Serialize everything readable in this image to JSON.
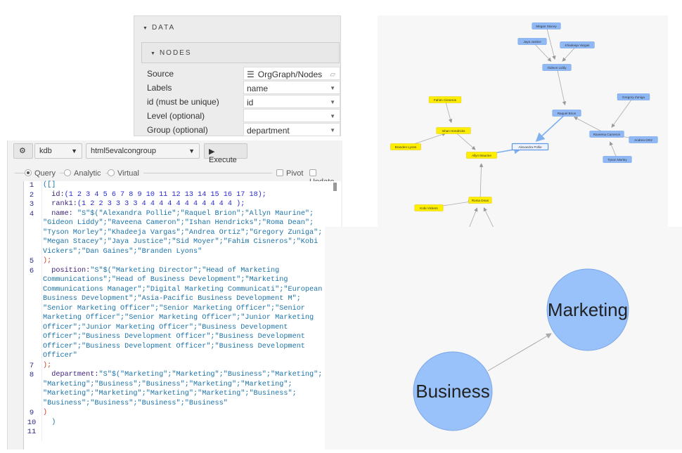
{
  "config": {
    "section": "DATA",
    "subsection": "NODES",
    "fields": [
      {
        "label": "Source",
        "value": "OrgGraph/Nodes",
        "icon": "database-icon"
      },
      {
        "label": "Labels",
        "value": "name"
      },
      {
        "label": "id (must be unique)",
        "value": "id"
      },
      {
        "label": "Level (optional)",
        "value": ""
      },
      {
        "label": "Group (optional)",
        "value": "department"
      }
    ]
  },
  "query": {
    "connection": "kdb",
    "target": "html5evalcongroup",
    "execute_label": "Execute",
    "modes": [
      "Query",
      "Analytic",
      "Virtual"
    ],
    "selected_mode": "Query",
    "pivot_label": "Pivot",
    "update_label": "Update",
    "lines": [
      {
        "num": "1",
        "rows": [
          [
            "",
            "([]"
          ]
        ]
      },
      {
        "num": "2",
        "rows": [
          [
            "  id:",
            "(1 2 3 4 5 6 7 8 9 10 11 12 13 14 15 16 17 18);"
          ]
        ]
      },
      {
        "num": "3",
        "rows": [
          [
            "  rank1:",
            "(1 2 2 3 3 3 3 4 4 4 4 4 4 4 4 4 4 4 );"
          ]
        ]
      },
      {
        "num": "4",
        "rows": [
          [
            "  name: ",
            "\"S\"$(\"Alexandra Pollie\";\"Raquel Brion\";\"Allyn Maurine\";"
          ],
          [
            "",
            "\"Gideon Liddy\";\"Raveena Cameron\";\"Ishan Hendricks\";\"Roma Dean\";"
          ],
          [
            "",
            "\"Tyson Morley\";\"Khadeeja Vargas\";\"Andrea Ortiz\";\"Gregory Zuniga\";"
          ],
          [
            "",
            "\"Megan Stacey\";\"Jaya Justice\";\"Sid Moyer\";\"Fahim Cisneros\";\"Kobi"
          ],
          [
            "",
            "Vickers\";\"Dan Gaines\";\"Branden Lyons\""
          ]
        ]
      },
      {
        "num": "5",
        "rows": [
          [
            "",
            ");"
          ]
        ]
      },
      {
        "num": "6",
        "rows": [
          [
            "  position:",
            "\"S\"$(\"Marketing Director\";\"Head of Marketing"
          ],
          [
            "",
            "Communications\";\"Head of Business Development\";\"Marketing"
          ],
          [
            "",
            "Communications Manager\";\"Digital Marketing Communicati\";\"European"
          ],
          [
            "",
            "Business Development\";\"Asia-Pacific Business Development M\";"
          ],
          [
            "",
            "\"Senior Marketing Officer\";\"Senior Marketing Officer\";\"Senior"
          ],
          [
            "",
            "Marketing Officer\";\"Senior Marketing Officer\";\"Junior Marketing"
          ],
          [
            "",
            "Officer\";\"Junior Marketing Officer\";\"Business Development"
          ],
          [
            "",
            "Officer\";\"Business Development Officer\";\"Business Development"
          ],
          [
            "",
            "Officer\";\"Business Development Officer\";\"Business Development"
          ],
          [
            "",
            "Officer\""
          ]
        ]
      },
      {
        "num": "7",
        "rows": [
          [
            "",
            ");"
          ]
        ]
      },
      {
        "num": "8",
        "rows": [
          [
            "  department:",
            "\"S\"$(\"Marketing\";\"Marketing\";\"Business\";\"Marketing\";"
          ],
          [
            "",
            "\"Marketing\";\"Business\";\"Business\";\"Marketing\";\"Marketing\";"
          ],
          [
            "",
            "\"Marketing\";\"Marketing\";\"Marketing\";\"Marketing\";\"Business\";"
          ],
          [
            "",
            "\"Business\";\"Business\";\"Business\";\"Business\""
          ]
        ]
      },
      {
        "num": "9",
        "rows": [
          [
            "",
            ")"
          ]
        ]
      },
      {
        "num": "10",
        "rows": [
          [
            "",
            "  )"
          ]
        ]
      },
      {
        "num": "11",
        "rows": [
          [
            "",
            ""
          ]
        ]
      }
    ]
  },
  "colors": {
    "marketing": "#8fb8f5",
    "business": "#ffee00",
    "edge": "#aaaaaa",
    "highlight": "#7fb0f0"
  },
  "graph": {
    "nodes": [
      {
        "name": "Megan Stacey",
        "group": "Marketing"
      },
      {
        "name": "Jaya Justice",
        "group": "Marketing"
      },
      {
        "name": "Khadeeja Vargas",
        "group": "Marketing"
      },
      {
        "name": "Gideon Liddy",
        "group": "Marketing"
      },
      {
        "name": "Raquel Brion",
        "group": "Marketing"
      },
      {
        "name": "Gregory Zuniga",
        "group": "Marketing"
      },
      {
        "name": "Raveena Cameron",
        "group": "Marketing"
      },
      {
        "name": "Andrea Ortiz",
        "group": "Marketing"
      },
      {
        "name": "Tyson Morley",
        "group": "Marketing"
      },
      {
        "name": "Alexandra Pollie",
        "group": "Marketing"
      },
      {
        "name": "Fahim Cisneros",
        "group": "Business"
      },
      {
        "name": "Ishan Hendricks",
        "group": "Business"
      },
      {
        "name": "Branden Lyons",
        "group": "Business"
      },
      {
        "name": "Allyn Maurine",
        "group": "Business"
      },
      {
        "name": "Roma Dean",
        "group": "Business"
      },
      {
        "name": "Kobi Vickers",
        "group": "Business"
      },
      {
        "name": "Dan Gaines",
        "group": "Business"
      },
      {
        "name": "Sid Moyer",
        "group": "Business"
      }
    ],
    "edges": [
      [
        "Megan Stacey",
        "Gideon Liddy"
      ],
      [
        "Jaya Justice",
        "Gideon Liddy"
      ],
      [
        "Khadeeja Vargas",
        "Gideon Liddy"
      ],
      [
        "Gideon Liddy",
        "Raquel Brion"
      ],
      [
        "Raquel Brion",
        "Alexandra Pollie"
      ],
      [
        "Raveena Cameron",
        "Raquel Brion"
      ],
      [
        "Gregory Zuniga",
        "Raveena Cameron"
      ],
      [
        "Andrea Ortiz",
        "Raveena Cameron"
      ],
      [
        "Tyson Morley",
        "Raveena Cameron"
      ],
      [
        "Fahim Cisneros",
        "Ishan Hendricks"
      ],
      [
        "Branden Lyons",
        "Ishan Hendricks"
      ],
      [
        "Ishan Hendricks",
        "Allyn Maurine"
      ],
      [
        "Allyn Maurine",
        "Alexandra Pollie"
      ],
      [
        "Roma Dean",
        "Allyn Maurine"
      ],
      [
        "Kobi Vickers",
        "Roma Dean"
      ],
      [
        "Dan Gaines",
        "Roma Dean"
      ],
      [
        "Sid Moyer",
        "Roma Dean"
      ]
    ]
  },
  "groups": {
    "nodes": [
      "Marketing",
      "Business"
    ],
    "edge": [
      "Business",
      "Marketing"
    ]
  }
}
